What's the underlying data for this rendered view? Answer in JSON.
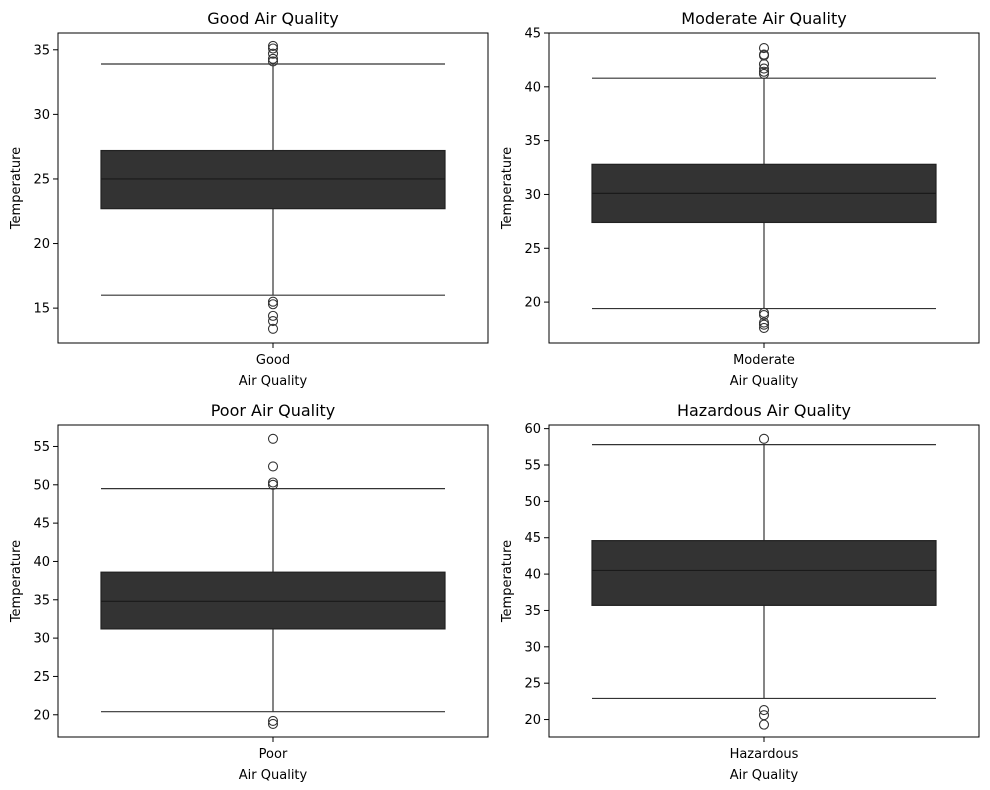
{
  "colors": {
    "box": "#333333",
    "axis": "#000000",
    "background": "#ffffff"
  },
  "chart_data": [
    {
      "type": "boxplot",
      "title": "Good Air Quality",
      "xlabel": "Air Quality",
      "ylabel": "Temperature",
      "category": "Good",
      "ylim": [
        12.3,
        36.3
      ],
      "yticks": [
        15,
        20,
        25,
        30,
        35
      ],
      "stats": {
        "whisker_low": 16.0,
        "q1": 22.7,
        "median": 25.0,
        "q3": 27.2,
        "whisker_high": 33.9
      },
      "outliers": [
        35.3,
        35.1,
        34.7,
        34.3,
        34.1,
        15.5,
        15.3,
        14.4,
        14.0,
        13.4
      ]
    },
    {
      "type": "boxplot",
      "title": "Moderate Air Quality",
      "xlabel": "Air Quality",
      "ylabel": "Temperature",
      "category": "Moderate",
      "ylim": [
        16.2,
        45.0
      ],
      "yticks": [
        20,
        25,
        30,
        35,
        40,
        45
      ],
      "stats": {
        "whisker_low": 19.4,
        "q1": 27.4,
        "median": 30.1,
        "q3": 32.8,
        "whisker_high": 40.8
      },
      "outliers": [
        43.6,
        43.0,
        42.9,
        42.1,
        41.7,
        41.4,
        41.2,
        19.0,
        18.8,
        18.1,
        17.9,
        17.6
      ]
    },
    {
      "type": "boxplot",
      "title": "Poor Air Quality",
      "xlabel": "Air Quality",
      "ylabel": "Temperature",
      "category": "Poor",
      "ylim": [
        17.1,
        57.8
      ],
      "yticks": [
        20,
        25,
        30,
        35,
        40,
        45,
        50,
        55
      ],
      "stats": {
        "whisker_low": 20.4,
        "q1": 31.2,
        "median": 34.8,
        "q3": 38.6,
        "whisker_high": 49.5
      },
      "outliers": [
        56.0,
        52.4,
        50.3,
        50.0,
        19.2,
        18.8
      ]
    },
    {
      "type": "boxplot",
      "title": "Hazardous Air Quality",
      "xlabel": "Air Quality",
      "ylabel": "Temperature",
      "category": "Hazardous",
      "ylim": [
        17.6,
        60.5
      ],
      "yticks": [
        20,
        25,
        30,
        35,
        40,
        45,
        50,
        55,
        60
      ],
      "stats": {
        "whisker_low": 22.9,
        "q1": 35.7,
        "median": 40.5,
        "q3": 44.6,
        "whisker_high": 57.8
      },
      "outliers": [
        58.6,
        21.3,
        20.6,
        19.3
      ]
    }
  ]
}
